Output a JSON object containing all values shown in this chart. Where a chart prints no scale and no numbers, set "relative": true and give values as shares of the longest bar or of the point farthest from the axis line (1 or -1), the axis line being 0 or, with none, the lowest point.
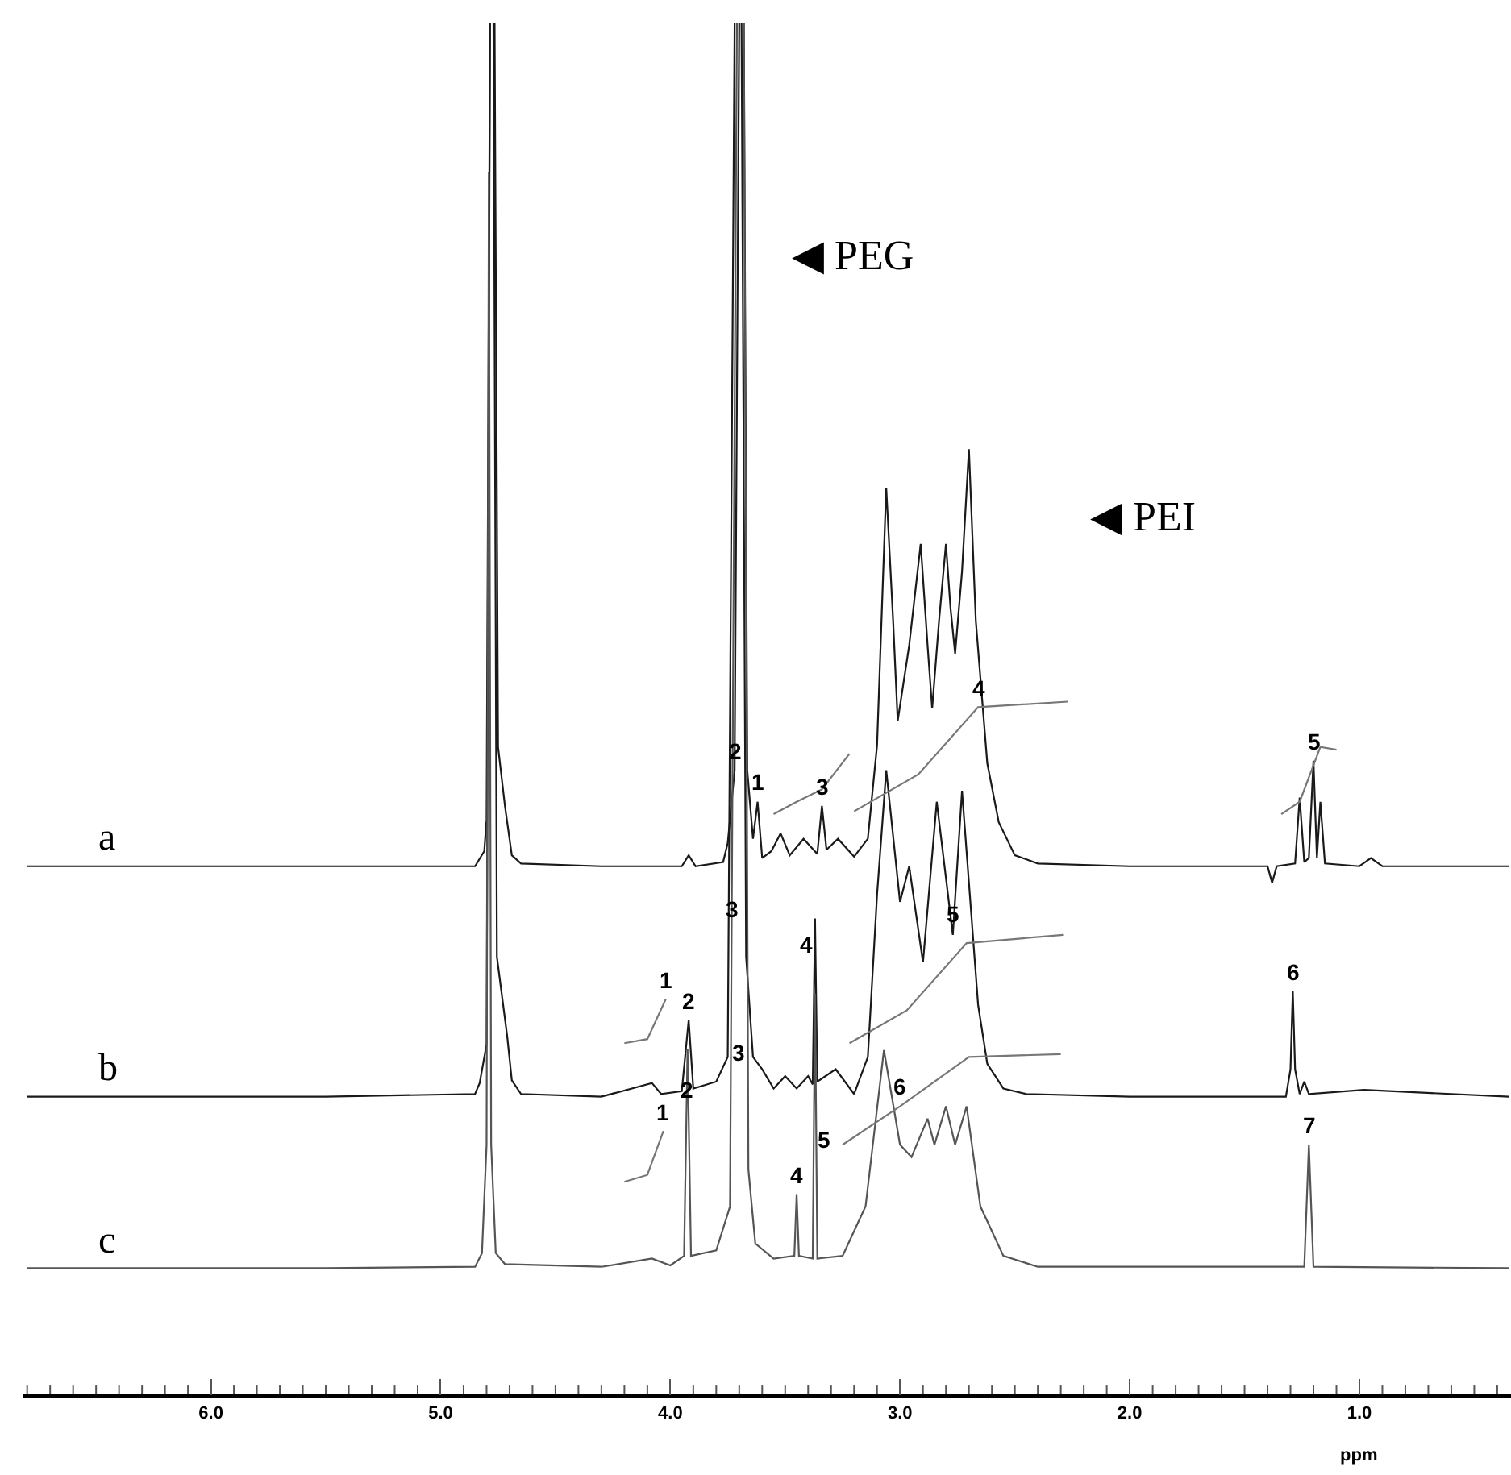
{
  "chart_data": {
    "type": "line",
    "relative": true,
    "xlabel": "ppm",
    "legend": false,
    "xlim": [
      6.82,
      0.34
    ],
    "xticks": [
      {
        "value": 6.8,
        "label": null
      },
      {
        "value": 6.7,
        "label": null
      },
      {
        "value": 6.6,
        "label": null
      },
      {
        "value": 6.5,
        "label": null
      },
      {
        "value": 6.4,
        "label": null
      },
      {
        "value": 6.3,
        "label": null
      },
      {
        "value": 6.2,
        "label": null
      },
      {
        "value": 6.1,
        "label": null
      },
      {
        "value": 6.0,
        "label": "6.0"
      },
      {
        "value": 5.9,
        "label": null
      },
      {
        "value": 5.8,
        "label": null
      },
      {
        "value": 5.7,
        "label": null
      },
      {
        "value": 5.6,
        "label": null
      },
      {
        "value": 5.5,
        "label": null
      },
      {
        "value": 5.4,
        "label": null
      },
      {
        "value": 5.3,
        "label": null
      },
      {
        "value": 5.2,
        "label": null
      },
      {
        "value": 5.1,
        "label": null
      },
      {
        "value": 5.0,
        "label": "5.0"
      },
      {
        "value": 4.9,
        "label": null
      },
      {
        "value": 4.8,
        "label": null
      },
      {
        "value": 4.7,
        "label": null
      },
      {
        "value": 4.6,
        "label": null
      },
      {
        "value": 4.5,
        "label": null
      },
      {
        "value": 4.4,
        "label": null
      },
      {
        "value": 4.3,
        "label": null
      },
      {
        "value": 4.2,
        "label": null
      },
      {
        "value": 4.1,
        "label": null
      },
      {
        "value": 4.0,
        "label": "4.0"
      },
      {
        "value": 3.9,
        "label": null
      },
      {
        "value": 3.8,
        "label": null
      },
      {
        "value": 3.7,
        "label": null
      },
      {
        "value": 3.6,
        "label": null
      },
      {
        "value": 3.5,
        "label": null
      },
      {
        "value": 3.4,
        "label": null
      },
      {
        "value": 3.3,
        "label": null
      },
      {
        "value": 3.2,
        "label": null
      },
      {
        "value": 3.1,
        "label": null
      },
      {
        "value": 3.0,
        "label": "3.0"
      },
      {
        "value": 2.9,
        "label": null
      },
      {
        "value": 2.8,
        "label": null
      },
      {
        "value": 2.7,
        "label": null
      },
      {
        "value": 2.6,
        "label": null
      },
      {
        "value": 2.5,
        "label": null
      },
      {
        "value": 2.4,
        "label": null
      },
      {
        "value": 2.3,
        "label": null
      },
      {
        "value": 2.2,
        "label": null
      },
      {
        "value": 2.1,
        "label": null
      },
      {
        "value": 2.0,
        "label": "2.0"
      },
      {
        "value": 1.9,
        "label": null
      },
      {
        "value": 1.8,
        "label": null
      },
      {
        "value": 1.7,
        "label": null
      },
      {
        "value": 1.6,
        "label": null
      },
      {
        "value": 1.5,
        "label": null
      },
      {
        "value": 1.4,
        "label": null
      },
      {
        "value": 1.3,
        "label": null
      },
      {
        "value": 1.2,
        "label": null
      },
      {
        "value": 1.1,
        "label": null
      },
      {
        "value": 1.0,
        "label": "1.0"
      },
      {
        "value": 0.9,
        "label": null
      },
      {
        "value": 0.8,
        "label": null
      },
      {
        "value": 0.7,
        "label": null
      },
      {
        "value": 0.6,
        "label": null
      },
      {
        "value": 0.5,
        "label": null
      },
      {
        "value": 0.4,
        "label": null
      }
    ],
    "series": [
      {
        "name": "a",
        "color": "#1a1a1a",
        "x": [
          6.8,
          5.5,
          4.85,
          4.81,
          4.8,
          4.785,
          4.765,
          4.75,
          4.72,
          4.69,
          4.65,
          4.3,
          3.95,
          3.92,
          3.89,
          3.77,
          3.75,
          3.72,
          3.7,
          3.68,
          3.665,
          3.64,
          3.62,
          3.6,
          3.56,
          3.52,
          3.48,
          3.42,
          3.36,
          3.34,
          3.32,
          3.27,
          3.2,
          3.14,
          3.1,
          3.06,
          3.03,
          3.01,
          2.96,
          2.91,
          2.88,
          2.86,
          2.83,
          2.8,
          2.78,
          2.76,
          2.73,
          2.7,
          2.67,
          2.62,
          2.57,
          2.5,
          2.4,
          2.0,
          1.4,
          1.38,
          1.36,
          1.28,
          1.26,
          1.24,
          1.22,
          1.2,
          1.185,
          1.17,
          1.15,
          1.0,
          0.95,
          0.9,
          0.35
        ],
        "values": [
          0.385,
          0.385,
          0.385,
          0.396,
          0.419,
          1.0,
          1.0,
          0.472,
          0.429,
          0.393,
          0.387,
          0.385,
          0.385,
          0.393,
          0.385,
          0.388,
          0.402,
          0.455,
          1.0,
          1.0,
          0.455,
          0.405,
          0.432,
          0.391,
          0.396,
          0.409,
          0.393,
          0.405,
          0.394,
          0.429,
          0.397,
          0.405,
          0.392,
          0.405,
          0.473,
          0.661,
          0.564,
          0.491,
          0.546,
          0.62,
          0.546,
          0.5,
          0.564,
          0.62,
          0.573,
          0.54,
          0.6,
          0.689,
          0.564,
          0.46,
          0.417,
          0.393,
          0.387,
          0.385,
          0.385,
          0.373,
          0.385,
          0.387,
          0.435,
          0.388,
          0.391,
          0.462,
          0.391,
          0.432,
          0.387,
          0.385,
          0.391,
          0.385,
          0.385
        ]
      },
      {
        "name": "b",
        "color": "#1a1a1a",
        "x": [
          6.8,
          5.5,
          4.85,
          4.83,
          4.8,
          4.785,
          4.77,
          4.755,
          4.71,
          4.69,
          4.65,
          4.3,
          4.08,
          4.04,
          3.95,
          3.92,
          3.9,
          3.8,
          3.75,
          3.72,
          3.69,
          3.67,
          3.64,
          3.6,
          3.55,
          3.5,
          3.45,
          3.4,
          3.38,
          3.37,
          3.36,
          3.28,
          3.2,
          3.14,
          3.1,
          3.06,
          3.0,
          2.96,
          2.9,
          2.84,
          2.77,
          2.73,
          2.66,
          2.62,
          2.55,
          2.45,
          2.0,
          1.32,
          1.3,
          1.29,
          1.28,
          1.26,
          1.24,
          1.22,
          0.98,
          0.35
        ],
        "values": [
          0.217,
          0.217,
          0.219,
          0.227,
          0.255,
          1.0,
          1.0,
          0.319,
          0.261,
          0.229,
          0.219,
          0.217,
          0.227,
          0.219,
          0.221,
          0.273,
          0.223,
          0.228,
          0.246,
          1.0,
          1.0,
          0.319,
          0.246,
          0.237,
          0.223,
          0.232,
          0.223,
          0.232,
          0.226,
          0.347,
          0.228,
          0.237,
          0.219,
          0.246,
          0.364,
          0.455,
          0.359,
          0.385,
          0.315,
          0.432,
          0.335,
          0.44,
          0.284,
          0.241,
          0.223,
          0.219,
          0.217,
          0.217,
          0.237,
          0.294,
          0.237,
          0.219,
          0.228,
          0.219,
          0.222,
          0.217
        ]
      },
      {
        "name": "c",
        "color": "#555555",
        "x": [
          6.8,
          5.5,
          4.85,
          4.82,
          4.8,
          4.79,
          4.78,
          4.76,
          4.72,
          4.3,
          4.08,
          4.0,
          3.94,
          3.925,
          3.91,
          3.8,
          3.74,
          3.71,
          3.68,
          3.66,
          3.63,
          3.55,
          3.46,
          3.45,
          3.44,
          3.38,
          3.37,
          3.36,
          3.25,
          3.15,
          3.07,
          3.0,
          2.95,
          2.88,
          2.85,
          2.8,
          2.76,
          2.71,
          2.65,
          2.55,
          2.4,
          1.24,
          1.22,
          1.2,
          0.35
        ],
        "values": [
          0.092,
          0.092,
          0.093,
          0.103,
          0.182,
          0.891,
          0.182,
          0.103,
          0.095,
          0.093,
          0.099,
          0.094,
          0.101,
          0.252,
          0.101,
          0.105,
          0.137,
          1.0,
          1.0,
          0.164,
          0.11,
          0.099,
          0.101,
          0.146,
          0.101,
          0.099,
          0.292,
          0.099,
          0.101,
          0.137,
          0.251,
          0.182,
          0.173,
          0.201,
          0.182,
          0.21,
          0.182,
          0.21,
          0.137,
          0.101,
          0.093,
          0.093,
          0.182,
          0.093,
          0.092
        ]
      },
      {
        "color": "#777777",
        "x": [
          3.55,
          3.45,
          3.34,
          3.22
        ],
        "values": [
          0.423,
          0.432,
          0.441,
          0.467
        ]
      },
      {
        "color": "#777777",
        "x": [
          3.2,
          2.92,
          2.66,
          2.27
        ],
        "values": [
          0.425,
          0.452,
          0.501,
          0.505
        ]
      },
      {
        "color": "#777777",
        "x": [
          1.34,
          1.26,
          1.17,
          1.1
        ],
        "values": [
          0.423,
          0.432,
          0.472,
          0.47
        ]
      },
      {
        "color": "#777777",
        "x": [
          4.2,
          4.1,
          4.02
        ],
        "values": [
          0.256,
          0.259,
          0.288
        ]
      },
      {
        "color": "#777777",
        "x": [
          3.22,
          2.97,
          2.71,
          2.29
        ],
        "values": [
          0.256,
          0.28,
          0.329,
          0.335
        ]
      },
      {
        "color": "#777777",
        "x": [
          4.2,
          4.1,
          4.03
        ],
        "values": [
          0.155,
          0.16,
          0.192
        ]
      },
      {
        "color": "#777777",
        "x": [
          3.25,
          3.0,
          2.7,
          2.3
        ],
        "values": [
          0.182,
          0.21,
          0.246,
          0.248
        ]
      }
    ],
    "annotations": [
      "◀ PEG",
      "◀ PEI",
      {
        "text": "2",
        "x": 3.72,
        "y": 0.455
      },
      {
        "text": "1",
        "x": 3.62,
        "y": 0.432
      },
      {
        "text": "3",
        "x": 3.34,
        "y": 0.429
      },
      {
        "text": "4",
        "x": 2.66,
        "y": 0.501
      },
      {
        "text": "5",
        "x": 1.2,
        "y": 0.462
      },
      {
        "text": "1",
        "x": 4.02,
        "y": 0.288
      },
      {
        "text": "2",
        "x": 3.92,
        "y": 0.273
      },
      {
        "text": "3",
        "x": 3.73,
        "y": 0.34
      },
      {
        "text": "4",
        "x": 3.41,
        "y": 0.314
      },
      {
        "text": "5",
        "x": 2.77,
        "y": 0.336
      },
      {
        "text": "6",
        "x": 1.29,
        "y": 0.294
      },
      {
        "text": "1",
        "x": 4.03,
        "y": 0.192
      },
      {
        "text": "2",
        "x": 3.93,
        "y": 0.208
      },
      {
        "text": "3",
        "x": 3.7,
        "y": 0.235
      },
      {
        "text": "4",
        "x": 3.45,
        "y": 0.146
      },
      {
        "text": "5",
        "x": 3.33,
        "y": 0.172
      },
      {
        "text": "6",
        "x": 3.0,
        "y": 0.21
      },
      {
        "text": "7",
        "x": 1.22,
        "y": 0.182
      }
    ]
  }
}
